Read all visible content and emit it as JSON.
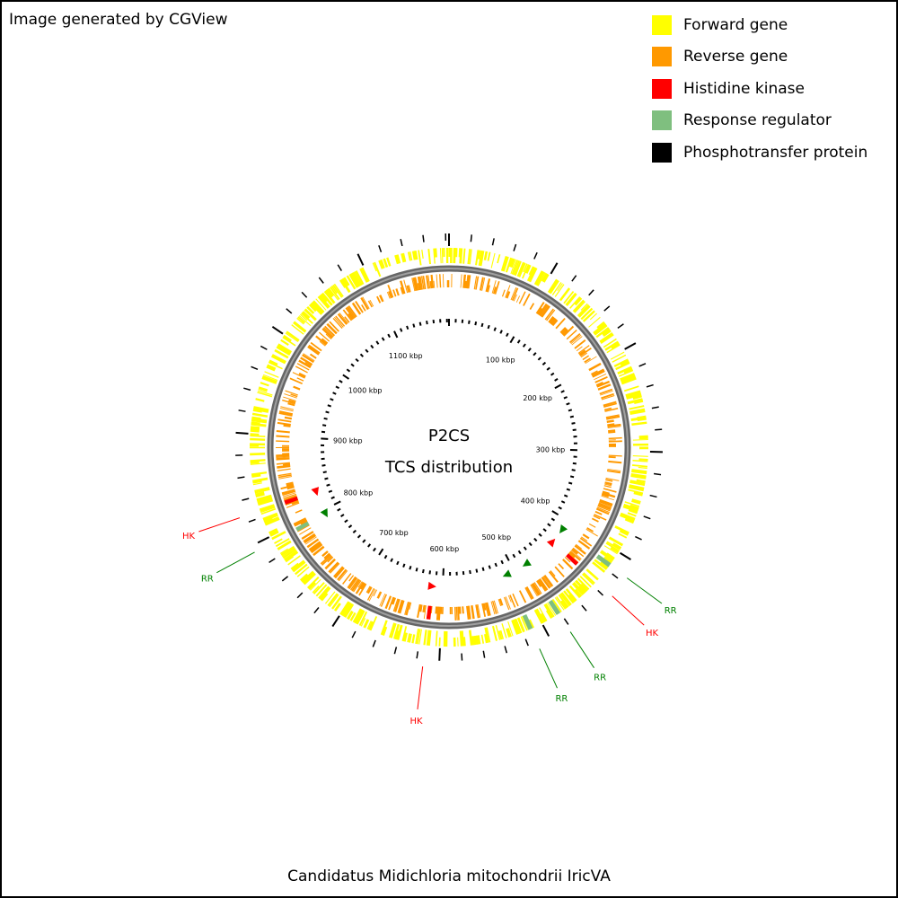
{
  "credit": "Image generated by CGView",
  "title_line1": "P2CS",
  "title_line2": "TCS distribution",
  "organism": "Candidatus Midichloria mitochondrii IricVA",
  "colors": {
    "forward": "#ffff00",
    "reverse": "#ff9900",
    "histidine_kinase": "#ff0000",
    "response_regulator": "#7fbf7f",
    "response_regulator_label": "#008000",
    "phosphotransfer": "#000000",
    "backbone": "#808080"
  },
  "legend": [
    {
      "label": "Forward gene",
      "color": "#ffff00"
    },
    {
      "label": "Reverse gene",
      "color": "#ff9900"
    },
    {
      "label": "Histidine kinase",
      "color": "#ff0000"
    },
    {
      "label": "Response regulator",
      "color": "#7fbf7f"
    },
    {
      "label": "Phosphotransfer protein",
      "color": "#000000"
    }
  ],
  "genome_length_kbp": 1183,
  "ruler_labels": [
    "100 kbp",
    "200 kbp",
    "300 kbp",
    "400 kbp",
    "500 kbp",
    "600 kbp",
    "700 kbp",
    "800 kbp",
    "900 kbp",
    "1000 kbp",
    "1100 kbp"
  ],
  "features": [
    {
      "type": "RR",
      "label": "RR",
      "position_kbp": 415,
      "strand": "forward"
    },
    {
      "type": "HK",
      "label": "HK",
      "position_kbp": 435,
      "strand": "reverse"
    },
    {
      "type": "RR",
      "label": "RR",
      "position_kbp": 482,
      "strand": "forward"
    },
    {
      "type": "RR",
      "label": "RR",
      "position_kbp": 512,
      "strand": "forward"
    },
    {
      "type": "HK",
      "label": "HK",
      "position_kbp": 614,
      "strand": "reverse"
    },
    {
      "type": "RR",
      "label": "RR",
      "position_kbp": 794,
      "strand": "reverse"
    },
    {
      "type": "HK",
      "label": "HK",
      "position_kbp": 826,
      "strand": "reverse"
    }
  ]
}
